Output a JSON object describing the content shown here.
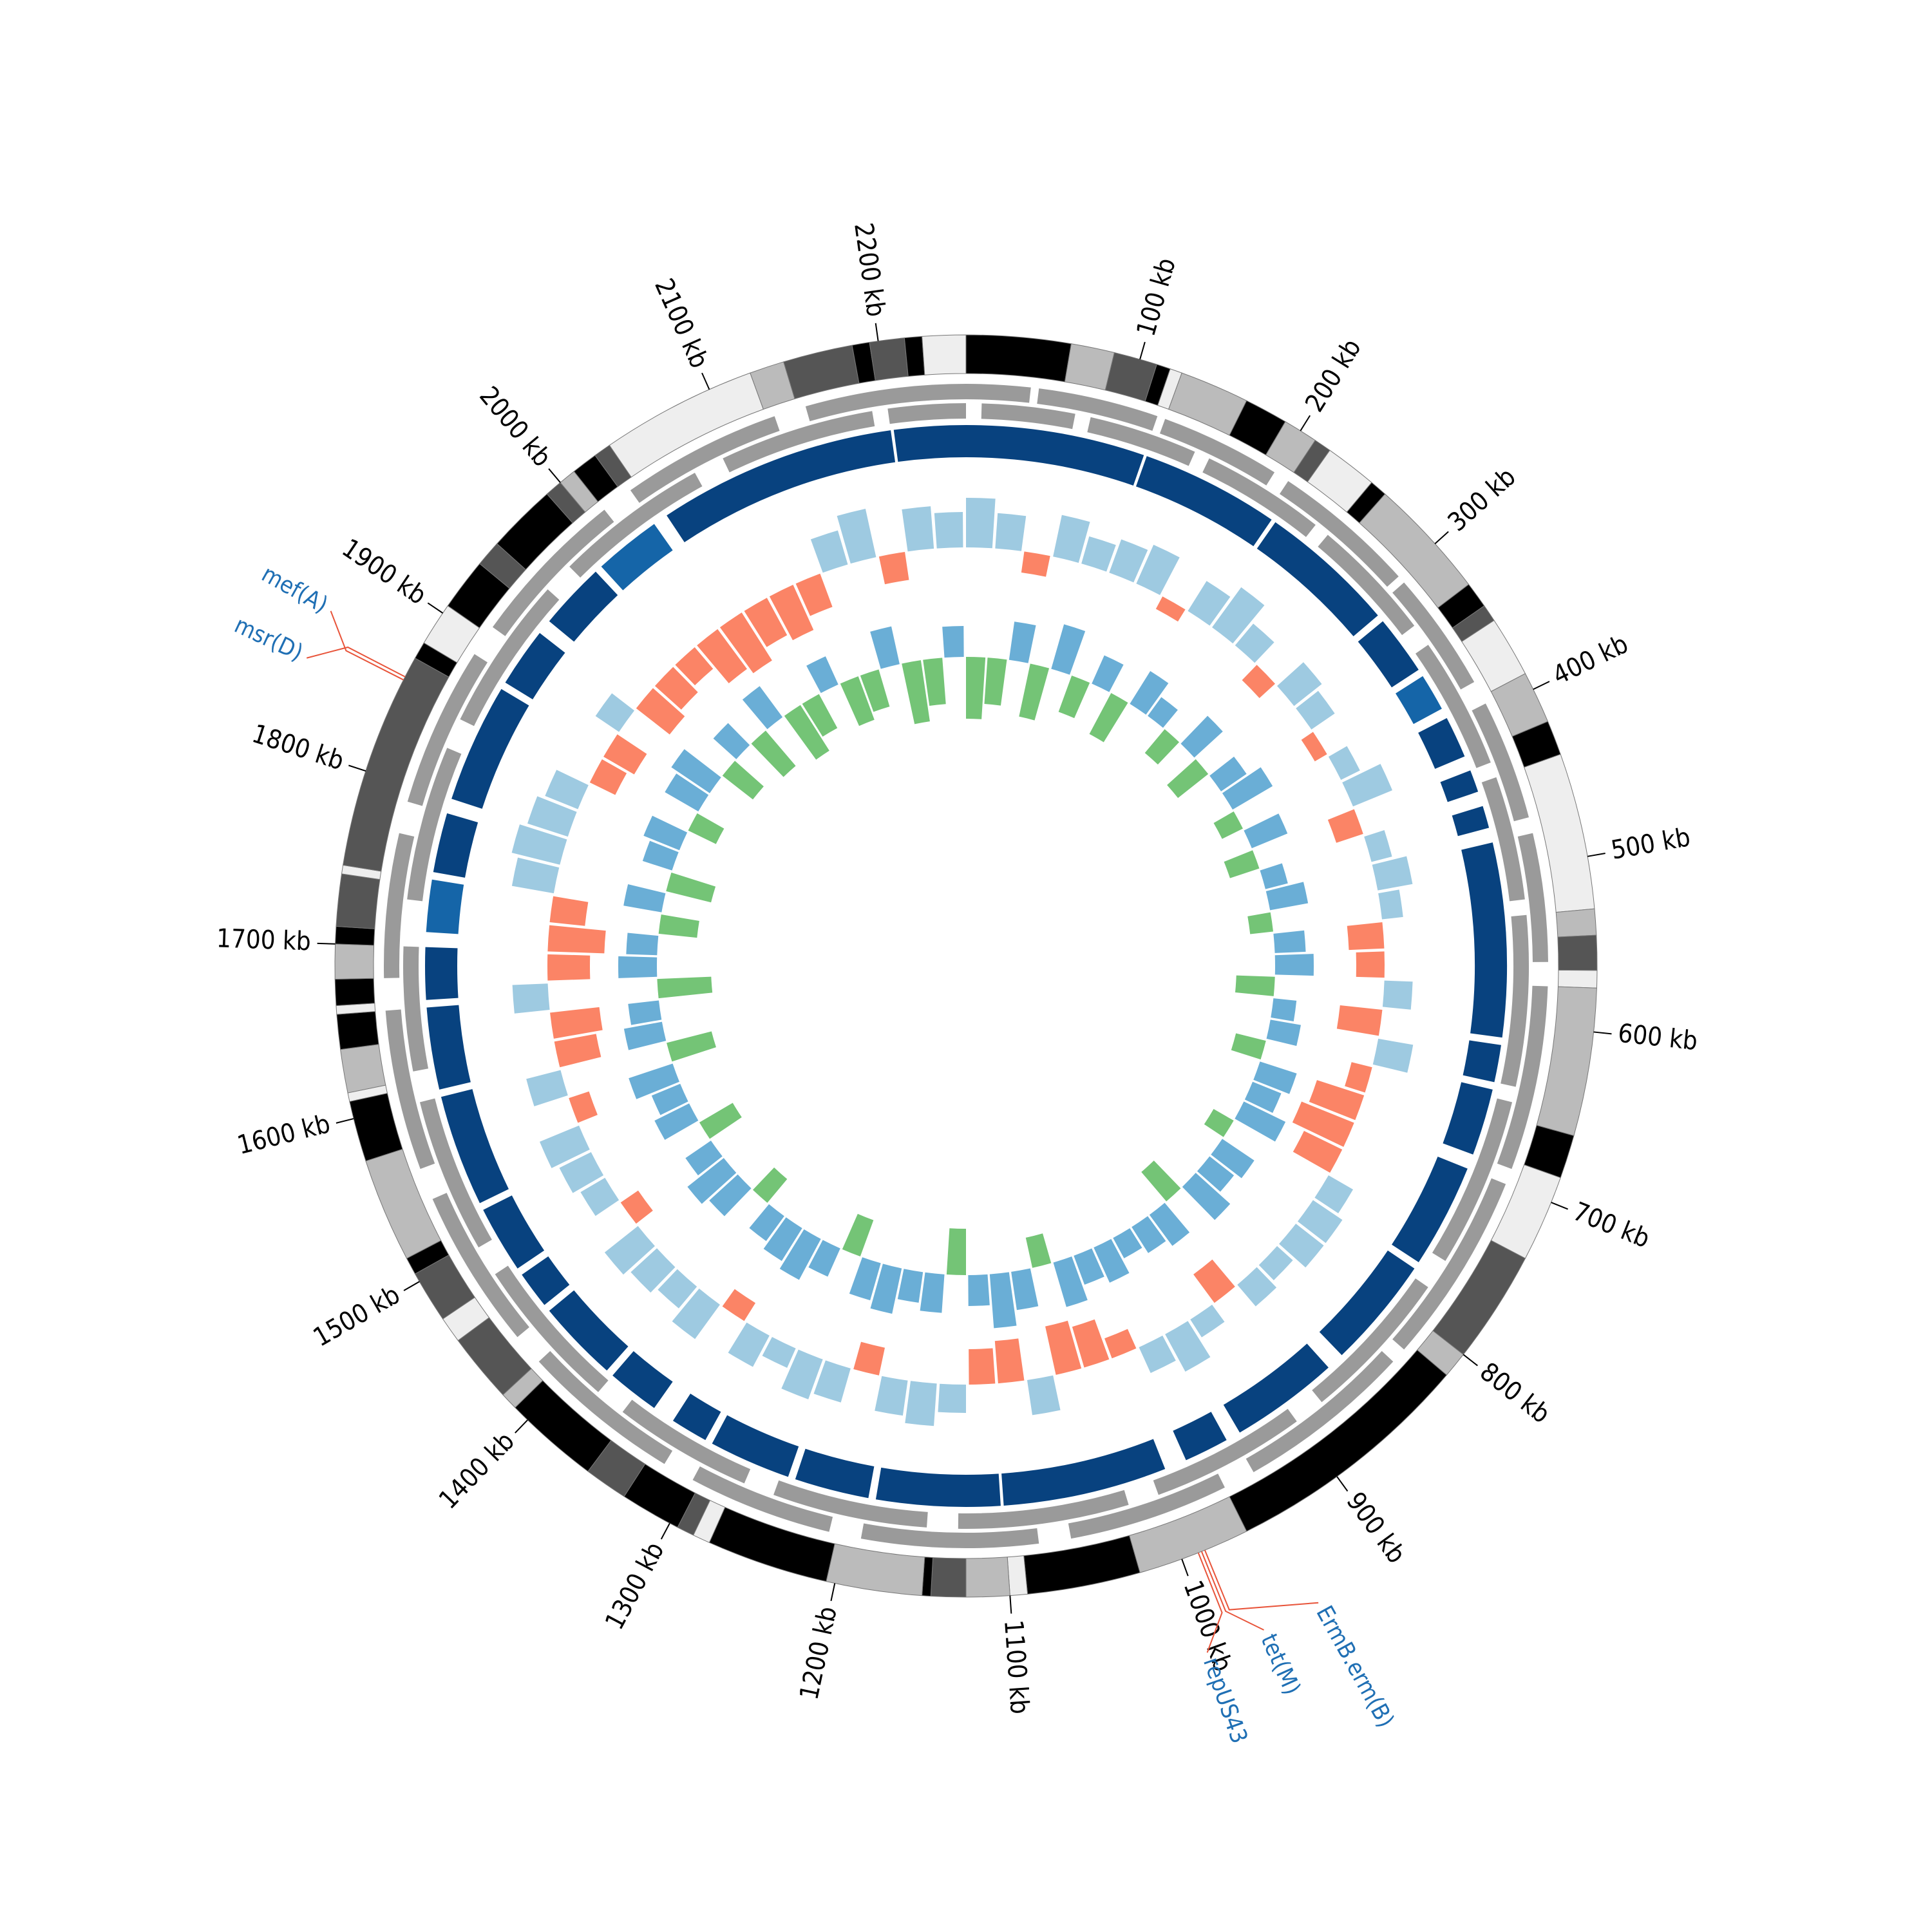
{
  "chart_data": {
    "type": "circular-genome",
    "xlim": [
      0,
      2250
    ],
    "xticks": [
      {
        "value": 100,
        "label": "100 kb"
      },
      {
        "value": 200,
        "label": "200 kb"
      },
      {
        "value": 300,
        "label": "300 kb"
      },
      {
        "value": 400,
        "label": "400 kb"
      },
      {
        "value": 500,
        "label": "500 kb"
      },
      {
        "value": 600,
        "label": "600 kb"
      },
      {
        "value": 700,
        "label": "700 kb"
      },
      {
        "value": 800,
        "label": "800 kb"
      },
      {
        "value": 900,
        "label": "900 kb"
      },
      {
        "value": 1000,
        "label": "1000 kb"
      },
      {
        "value": 1100,
        "label": "1100 kb"
      },
      {
        "value": 1200,
        "label": "1200 kb"
      },
      {
        "value": 1300,
        "label": "1300 kb"
      },
      {
        "value": 1400,
        "label": "1400 kb"
      },
      {
        "value": 1500,
        "label": "1500 kb"
      },
      {
        "value": 1600,
        "label": "1600 kb"
      },
      {
        "value": 1700,
        "label": "1700 kb"
      },
      {
        "value": 1800,
        "label": "1800 kb"
      },
      {
        "value": 1900,
        "label": "1900 kb"
      },
      {
        "value": 2000,
        "label": "2000 kb"
      },
      {
        "value": 2100,
        "label": "2100 kb"
      },
      {
        "value": 2200,
        "label": "2200 kb"
      }
    ],
    "contigs": [
      {
        "start": 0,
        "end": 60,
        "color": "#000000"
      },
      {
        "start": 60,
        "end": 85,
        "color": "#bbbbbb"
      },
      {
        "start": 85,
        "end": 110,
        "color": "#555555"
      },
      {
        "start": 110,
        "end": 118,
        "color": "#000000"
      },
      {
        "start": 118,
        "end": 125,
        "color": "#eeeeee"
      },
      {
        "start": 125,
        "end": 165,
        "color": "#bbbbbb"
      },
      {
        "start": 165,
        "end": 190,
        "color": "#000000"
      },
      {
        "start": 190,
        "end": 210,
        "color": "#bbbbbb"
      },
      {
        "start": 210,
        "end": 220,
        "color": "#555555"
      },
      {
        "start": 220,
        "end": 250,
        "color": "#eeeeee"
      },
      {
        "start": 250,
        "end": 260,
        "color": "#000000"
      },
      {
        "start": 260,
        "end": 330,
        "color": "#bbbbbb"
      },
      {
        "start": 330,
        "end": 345,
        "color": "#000000"
      },
      {
        "start": 345,
        "end": 355,
        "color": "#555555"
      },
      {
        "start": 355,
        "end": 390,
        "color": "#eeeeee"
      },
      {
        "start": 390,
        "end": 420,
        "color": "#bbbbbb"
      },
      {
        "start": 420,
        "end": 440,
        "color": "#000000"
      },
      {
        "start": 440,
        "end": 530,
        "color": "#eeeeee"
      },
      {
        "start": 530,
        "end": 545,
        "color": "#bbbbbb"
      },
      {
        "start": 545,
        "end": 565,
        "color": "#555555"
      },
      {
        "start": 565,
        "end": 575,
        "color": "#eeeeee"
      },
      {
        "start": 575,
        "end": 660,
        "color": "#bbbbbb"
      },
      {
        "start": 660,
        "end": 685,
        "color": "#000000"
      },
      {
        "start": 685,
        "end": 735,
        "color": "#eeeeee"
      },
      {
        "start": 735,
        "end": 800,
        "color": "#555555"
      },
      {
        "start": 800,
        "end": 815,
        "color": "#bbbbbb"
      },
      {
        "start": 815,
        "end": 960,
        "color": "#000000"
      },
      {
        "start": 960,
        "end": 1025,
        "color": "#bbbbbb"
      },
      {
        "start": 1025,
        "end": 1090,
        "color": "#000000"
      },
      {
        "start": 1090,
        "end": 1100,
        "color": "#eeeeee"
      },
      {
        "start": 1100,
        "end": 1125,
        "color": "#bbbbbb"
      },
      {
        "start": 1125,
        "end": 1145,
        "color": "#555555"
      },
      {
        "start": 1145,
        "end": 1150,
        "color": "#000000"
      },
      {
        "start": 1150,
        "end": 1205,
        "color": "#bbbbbb"
      },
      {
        "start": 1205,
        "end": 1275,
        "color": "#000000"
      },
      {
        "start": 1275,
        "end": 1285,
        "color": "#eeeeee"
      },
      {
        "start": 1285,
        "end": 1295,
        "color": "#555555"
      },
      {
        "start": 1295,
        "end": 1330,
        "color": "#000000"
      },
      {
        "start": 1330,
        "end": 1355,
        "color": "#555555"
      },
      {
        "start": 1355,
        "end": 1410,
        "color": "#000000"
      },
      {
        "start": 1410,
        "end": 1420,
        "color": "#bbbbbb"
      },
      {
        "start": 1420,
        "end": 1460,
        "color": "#555555"
      },
      {
        "start": 1460,
        "end": 1475,
        "color": "#eeeeee"
      },
      {
        "start": 1475,
        "end": 1505,
        "color": "#555555"
      },
      {
        "start": 1505,
        "end": 1515,
        "color": "#000000"
      },
      {
        "start": 1515,
        "end": 1575,
        "color": "#bbbbbb"
      },
      {
        "start": 1575,
        "end": 1610,
        "color": "#000000"
      },
      {
        "start": 1610,
        "end": 1615,
        "color": "#eeeeee"
      },
      {
        "start": 1615,
        "end": 1640,
        "color": "#bbbbbb"
      },
      {
        "start": 1640,
        "end": 1660,
        "color": "#000000"
      },
      {
        "start": 1660,
        "end": 1665,
        "color": "#eeeeee"
      },
      {
        "start": 1665,
        "end": 1680,
        "color": "#000000"
      },
      {
        "start": 1680,
        "end": 1700,
        "color": "#bbbbbb"
      },
      {
        "start": 1700,
        "end": 1710,
        "color": "#000000"
      },
      {
        "start": 1710,
        "end": 1740,
        "color": "#555555"
      },
      {
        "start": 1740,
        "end": 1745,
        "color": "#eeeeee"
      },
      {
        "start": 1745,
        "end": 1870,
        "color": "#555555"
      },
      {
        "start": 1870,
        "end": 1880,
        "color": "#000000"
      },
      {
        "start": 1880,
        "end": 1905,
        "color": "#eeeeee"
      },
      {
        "start": 1905,
        "end": 1935,
        "color": "#000000"
      },
      {
        "start": 1935,
        "end": 1950,
        "color": "#555555"
      },
      {
        "start": 1950,
        "end": 1990,
        "color": "#000000"
      },
      {
        "start": 1990,
        "end": 2000,
        "color": "#555555"
      },
      {
        "start": 2000,
        "end": 2010,
        "color": "#bbbbbb"
      },
      {
        "start": 2010,
        "end": 2025,
        "color": "#000000"
      },
      {
        "start": 2025,
        "end": 2035,
        "color": "#555555"
      },
      {
        "start": 2035,
        "end": 2125,
        "color": "#eeeeee"
      },
      {
        "start": 2125,
        "end": 2145,
        "color": "#bbbbbb"
      },
      {
        "start": 2145,
        "end": 2185,
        "color": "#555555"
      },
      {
        "start": 2185,
        "end": 2195,
        "color": "#000000"
      },
      {
        "start": 2195,
        "end": 2215,
        "color": "#555555"
      },
      {
        "start": 2215,
        "end": 2225,
        "color": "#000000"
      },
      {
        "start": 2225,
        "end": 2250,
        "color": "#eeeeee"
      }
    ],
    "genes": {
      "color": "#9a9a9a",
      "segments": [
        {
          "start": 0,
          "end": 40,
          "strand": 1
        },
        {
          "start": 10,
          "end": 70,
          "strand": -1
        },
        {
          "start": 45,
          "end": 120,
          "strand": 1
        },
        {
          "start": 80,
          "end": 150,
          "strand": -1
        },
        {
          "start": 125,
          "end": 200,
          "strand": 1
        },
        {
          "start": 160,
          "end": 240,
          "strand": -1
        },
        {
          "start": 210,
          "end": 300,
          "strand": 1
        },
        {
          "start": 250,
          "end": 330,
          "strand": -1
        },
        {
          "start": 305,
          "end": 380,
          "strand": 1
        },
        {
          "start": 345,
          "end": 430,
          "strand": -1
        },
        {
          "start": 395,
          "end": 470,
          "strand": 1
        },
        {
          "start": 440,
          "end": 520,
          "strand": -1
        },
        {
          "start": 480,
          "end": 560,
          "strand": 1
        },
        {
          "start": 530,
          "end": 640,
          "strand": -1
        },
        {
          "start": 575,
          "end": 690,
          "strand": 1
        },
        {
          "start": 650,
          "end": 760,
          "strand": -1
        },
        {
          "start": 700,
          "end": 820,
          "strand": 1
        },
        {
          "start": 780,
          "end": 880,
          "strand": -1
        },
        {
          "start": 830,
          "end": 940,
          "strand": 1
        },
        {
          "start": 900,
          "end": 1000,
          "strand": -1
        },
        {
          "start": 960,
          "end": 1060,
          "strand": 1
        },
        {
          "start": 1020,
          "end": 1130,
          "strand": -1
        },
        {
          "start": 1080,
          "end": 1190,
          "strand": 1
        },
        {
          "start": 1150,
          "end": 1250,
          "strand": -1
        },
        {
          "start": 1210,
          "end": 1300,
          "strand": 1
        },
        {
          "start": 1270,
          "end": 1360,
          "strand": -1
        },
        {
          "start": 1320,
          "end": 1420,
          "strand": 1
        },
        {
          "start": 1380,
          "end": 1480,
          "strand": -1
        },
        {
          "start": 1440,
          "end": 1540,
          "strand": 1
        },
        {
          "start": 1500,
          "end": 1600,
          "strand": -1
        },
        {
          "start": 1560,
          "end": 1660,
          "strand": 1
        },
        {
          "start": 1620,
          "end": 1700,
          "strand": -1
        },
        {
          "start": 1680,
          "end": 1770,
          "strand": 1
        },
        {
          "start": 1730,
          "end": 1830,
          "strand": -1
        },
        {
          "start": 1790,
          "end": 1890,
          "strand": 1
        },
        {
          "start": 1850,
          "end": 1950,
          "strand": -1
        },
        {
          "start": 1910,
          "end": 2010,
          "strand": 1
        },
        {
          "start": 1970,
          "end": 2070,
          "strand": -1
        },
        {
          "start": 2030,
          "end": 2130,
          "strand": 1
        },
        {
          "start": 2090,
          "end": 2190,
          "strand": -1
        },
        {
          "start": 2150,
          "end": 2250,
          "strand": 1
        },
        {
          "start": 2200,
          "end": 2250,
          "strand": -1
        }
      ]
    },
    "blocks": [
      {
        "start": 0,
        "end": 120,
        "color": "#08427f"
      },
      {
        "start": 122,
        "end": 215,
        "color": "#08427f"
      },
      {
        "start": 218,
        "end": 310,
        "color": "#08427f"
      },
      {
        "start": 315,
        "end": 355,
        "color": "#08427f"
      },
      {
        "start": 360,
        "end": 385,
        "color": "#1565a8"
      },
      {
        "start": 392,
        "end": 420,
        "color": "#08427f"
      },
      {
        "start": 430,
        "end": 445,
        "color": "#08427f"
      },
      {
        "start": 455,
        "end": 470,
        "color": "#08427f"
      },
      {
        "start": 480,
        "end": 610,
        "color": "#08427f"
      },
      {
        "start": 615,
        "end": 640,
        "color": "#08427f"
      },
      {
        "start": 645,
        "end": 690,
        "color": "#08427f"
      },
      {
        "start": 700,
        "end": 770,
        "color": "#08427f"
      },
      {
        "start": 775,
        "end": 850,
        "color": "#08427f"
      },
      {
        "start": 862,
        "end": 935,
        "color": "#08427f"
      },
      {
        "start": 945,
        "end": 975,
        "color": "#08427f"
      },
      {
        "start": 990,
        "end": 1100,
        "color": "#08427f"
      },
      {
        "start": 1102,
        "end": 1185,
        "color": "#08427f"
      },
      {
        "start": 1190,
        "end": 1240,
        "color": "#08427f"
      },
      {
        "start": 1245,
        "end": 1300,
        "color": "#08427f"
      },
      {
        "start": 1305,
        "end": 1330,
        "color": "#08427f"
      },
      {
        "start": 1345,
        "end": 1380,
        "color": "#08427f"
      },
      {
        "start": 1385,
        "end": 1440,
        "color": "#08427f"
      },
      {
        "start": 1445,
        "end": 1470,
        "color": "#08427f"
      },
      {
        "start": 1475,
        "end": 1520,
        "color": "#08427f"
      },
      {
        "start": 1525,
        "end": 1600,
        "color": "#08427f"
      },
      {
        "start": 1605,
        "end": 1660,
        "color": "#08427f"
      },
      {
        "start": 1665,
        "end": 1700,
        "color": "#08427f"
      },
      {
        "start": 1710,
        "end": 1745,
        "color": "#1565a8"
      },
      {
        "start": 1750,
        "end": 1790,
        "color": "#08427f"
      },
      {
        "start": 1800,
        "end": 1880,
        "color": "#08427f"
      },
      {
        "start": 1885,
        "end": 1925,
        "color": "#08427f"
      },
      {
        "start": 1935,
        "end": 1980,
        "color": "#08427f"
      },
      {
        "start": 1985,
        "end": 2030,
        "color": "#1565a8"
      },
      {
        "start": 2040,
        "end": 2200,
        "color": "#08427f"
      },
      {
        "start": 2202,
        "end": 2250,
        "color": "#08427f"
      }
    ],
    "x": [
      0,
      25,
      50,
      75,
      100,
      125,
      150,
      175,
      200,
      225,
      250,
      275,
      300,
      325,
      350,
      375,
      400,
      425,
      450,
      475,
      500,
      525,
      550,
      575,
      600,
      625,
      650,
      675,
      700,
      725,
      750,
      775,
      800,
      825,
      850,
      875,
      900,
      925,
      950,
      975,
      1000,
      1025,
      1050,
      1075,
      1100,
      1125,
      1150,
      1175,
      1200,
      1225,
      1250,
      1275,
      1300,
      1325,
      1350,
      1375,
      1400,
      1425,
      1450,
      1475,
      1500,
      1525,
      1550,
      1575,
      1600,
      1625,
      1650,
      1675,
      1700,
      1725,
      1750,
      1775,
      1800,
      1825,
      1850,
      1875,
      1900,
      1925,
      1950,
      1975,
      2000,
      2025,
      2050,
      2075,
      2100,
      2125,
      2150,
      2175,
      2200,
      2225
    ],
    "skew": {
      "ylim": [
        -1,
        1
      ],
      "colors": [
        "#9ecae1",
        "#fb8466"
      ],
      "values": [
        0.7,
        0.5,
        -0.3,
        0.6,
        0.4,
        0.5,
        0.6,
        -0.2,
        0.5,
        0.7,
        0.4,
        -0.3,
        0.5,
        0.4,
        -0.2,
        0.3,
        0.6,
        -0.4,
        0.3,
        0.5,
        0.3,
        -0.5,
        -0.4,
        0.4,
        -0.6,
        0.5,
        -0.3,
        -0.7,
        -0.8,
        -0.6,
        0.4,
        0.5,
        0.5,
        0.3,
        0.4,
        -0.5,
        0.3,
        0.6,
        0.4,
        -0.3,
        -0.6,
        -0.7,
        0.5,
        -0.6,
        -0.5,
        0.4,
        0.6,
        0.5,
        -0.4,
        0.5,
        0.6,
        0.3,
        0.5,
        -0.3,
        0.6,
        0.4,
        0.5,
        0.6,
        -0.3,
        0.4,
        0.5,
        0.6,
        -0.3,
        0.5,
        -0.6,
        -0.7,
        0.5,
        -0.6,
        -0.8,
        -0.5,
        0.6,
        0.7,
        0.6,
        0.5,
        -0.4,
        -0.5,
        0.4,
        -0.6,
        -0.5,
        -0.4,
        -0.7,
        -0.8,
        -0.6,
        -0.7,
        -0.5,
        0.5,
        0.7,
        -0.4,
        0.6,
        0.5
      ]
    },
    "gc": {
      "ylim": [
        -1,
        1
      ],
      "colors": [
        "#6aaed6",
        "#74c476"
      ],
      "values": [
        -0.8,
        -0.6,
        0.5,
        -0.7,
        0.6,
        -0.5,
        0.4,
        -0.6,
        0.5,
        0.3,
        -0.4,
        0.5,
        -0.5,
        0.4,
        0.6,
        -0.3,
        0.5,
        -0.4,
        0.3,
        0.5,
        -0.3,
        0.4,
        0.5,
        -0.5,
        0.3,
        0.4,
        -0.4,
        0.5,
        0.4,
        0.6,
        -0.3,
        0.5,
        0.4,
        0.6,
        -0.5,
        0.5,
        0.4,
        0.3,
        0.5,
        0.4,
        0.6,
        -0.4,
        0.5,
        0.7,
        0.4,
        -0.6,
        0.5,
        0.4,
        0.6,
        0.5,
        -0.5,
        0.4,
        0.6,
        0.5,
        0.4,
        -0.4,
        0.5,
        0.6,
        0.4,
        -0.5,
        0.5,
        0.4,
        0.6,
        -0.6,
        0.5,
        0.4,
        -0.7,
        0.5,
        0.4,
        -0.5,
        0.5,
        -0.6,
        0.4,
        0.5,
        -0.4,
        0.5,
        0.6,
        -0.5,
        0.4,
        -0.6,
        0.5,
        -0.7,
        -0.5,
        0.4,
        -0.6,
        -0.5,
        0.5,
        -0.8,
        -0.6,
        0.4
      ]
    },
    "annotation_color": "#1f6fb4",
    "leader_color": "#e8543a",
    "annotations": [
      {
        "label": "msr(D)",
        "position": 1858
      },
      {
        "label": "mef(A)",
        "position": 1856
      },
      {
        "label": "repUS43",
        "position": 990
      },
      {
        "label": "tet(M)",
        "position": 988
      },
      {
        "label": "ErmB.erm(B)",
        "position": 986
      }
    ]
  }
}
